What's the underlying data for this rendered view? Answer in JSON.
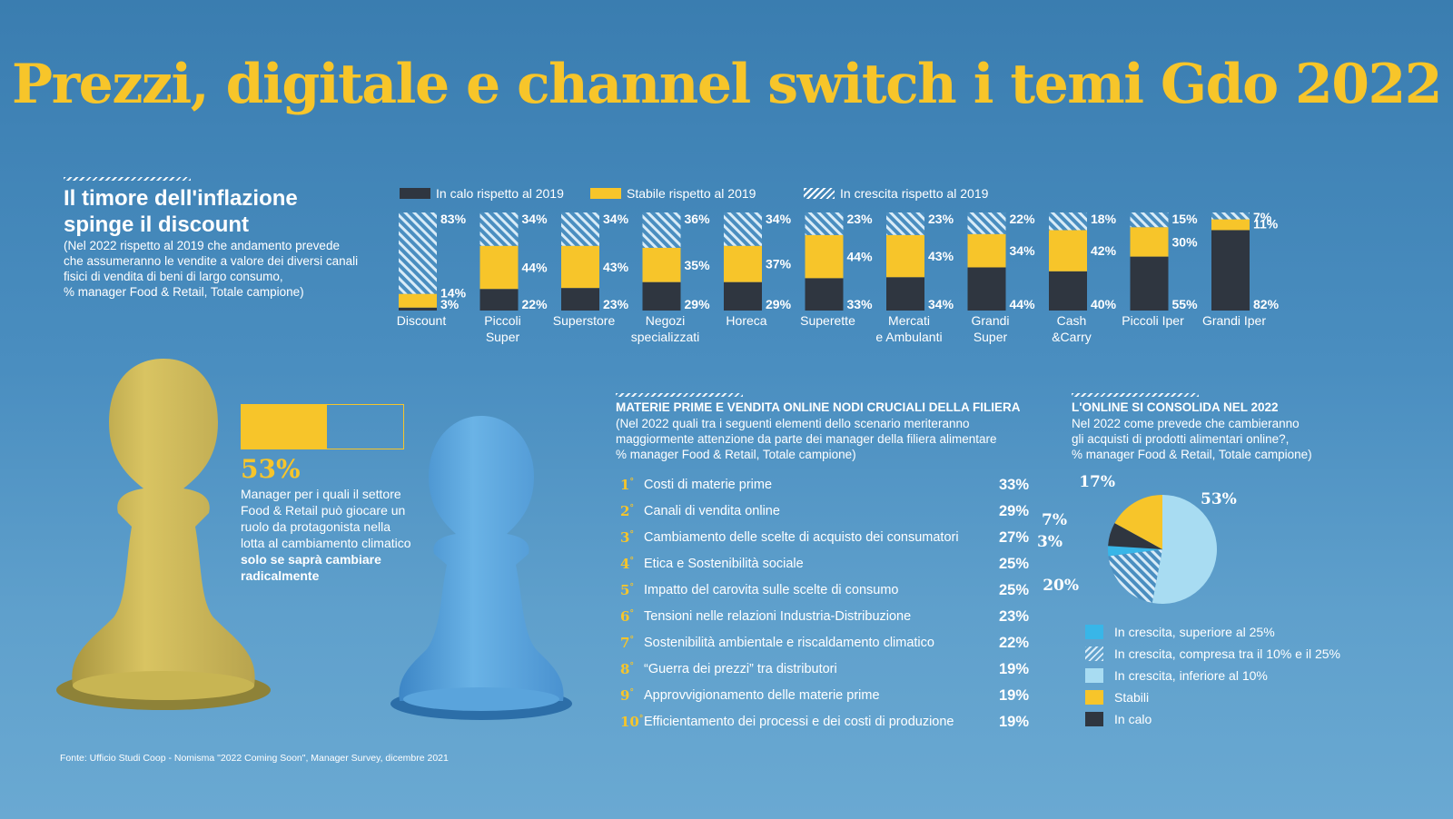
{
  "title": "Prezzi, digitale e channel switch i temi Gdo 2022",
  "section1": {
    "heading_line1": "Il timore dell'inflazione",
    "heading_line2": "spinge il discount",
    "note_lines": [
      "(Nel 2022 rispetto al 2019 che andamento prevede",
      "che assumeranno le vendite a valore dei diversi canali",
      "fisici di vendita di beni di largo consumo,",
      "% manager Food & Retail, Totale campione)"
    ]
  },
  "legend": {
    "down": "In calo rispetto al 2019",
    "stable": "Stabile rispetto al 2019",
    "up": "In crescita rispetto al 2019"
  },
  "chart_data": [
    {
      "type": "bar",
      "stacked": true,
      "categories": [
        "Discount",
        "Piccoli Super",
        "Superstore",
        "Negozi specializzati",
        "Horeca",
        "Superette",
        "Mercati e Ambulanti",
        "Grandi Super",
        "Cash &Carry",
        "Piccoli Iper",
        "Grandi Iper"
      ],
      "category_lines": [
        [
          "Discount"
        ],
        [
          "Piccoli",
          "Super"
        ],
        [
          "Superstore"
        ],
        [
          "Negozi",
          "specializzati"
        ],
        [
          "Horeca"
        ],
        [
          "Superette"
        ],
        [
          "Mercati",
          "e Ambulanti"
        ],
        [
          "Grandi",
          "Super"
        ],
        [
          "Cash",
          "&Carry"
        ],
        [
          "Piccoli Iper"
        ],
        [
          "Grandi Iper"
        ]
      ],
      "series": [
        {
          "name": "In calo rispetto al 2019",
          "color": "#2f3640",
          "values": [
            3,
            22,
            23,
            29,
            29,
            33,
            34,
            44,
            40,
            55,
            82
          ]
        },
        {
          "name": "Stabile rispetto al 2019",
          "color": "#f7c52a",
          "values": [
            14,
            44,
            43,
            35,
            37,
            44,
            43,
            34,
            42,
            30,
            11
          ]
        },
        {
          "name": "In crescita rispetto al 2019",
          "color": "hatch",
          "values": [
            83,
            34,
            34,
            36,
            34,
            23,
            23,
            22,
            18,
            15,
            7
          ]
        }
      ],
      "ylim": [
        0,
        100
      ]
    },
    {
      "type": "bar",
      "stacked": true,
      "categories": [
        "Manager"
      ],
      "series": [
        {
          "name": "",
          "values": [
            53
          ]
        }
      ],
      "value_label": "53%",
      "ylim": [
        0,
        100
      ]
    },
    {
      "type": "table",
      "heading": "MATERIE PRIME E VENDITA ONLINE NODI CRUCIALI DELLA FILIERA",
      "note_lines": [
        "(Nel 2022 quali tra i seguenti elementi dello scenario meriteranno",
        "maggiormente attenzione da parte dei manager della filiera alimentare",
        "% manager Food & Retail, Totale campione)"
      ],
      "rows": [
        {
          "rank": "1",
          "label": "Costi di materie prime",
          "value": "33%"
        },
        {
          "rank": "2",
          "label": "Canali di vendita online",
          "value": "29%"
        },
        {
          "rank": "3",
          "label": "Cambiamento delle scelte di acquisto dei consumatori",
          "value": "27%"
        },
        {
          "rank": "4",
          "label": "Etica e Sostenibilità sociale",
          "value": "25%"
        },
        {
          "rank": "5",
          "label": "Impatto del carovita sulle scelte di consumo",
          "value": "25%"
        },
        {
          "rank": "6",
          "label": "Tensioni nelle relazioni Industria-Distribuzione",
          "value": "23%"
        },
        {
          "rank": "7",
          "label": "Sostenibilità ambientale e riscaldamento climatico",
          "value": "22%"
        },
        {
          "rank": "8",
          "label": "“Guerra dei prezzi” tra distributori",
          "value": "19%"
        },
        {
          "rank": "9",
          "label": "Approvvigionamento delle materie prime",
          "value": "19%"
        },
        {
          "rank": "10",
          "label": "Efficientamento dei processi e dei costi di produzione",
          "value": "19%"
        }
      ]
    },
    {
      "type": "pie",
      "heading": "L'ONLINE SI CONSOLIDA NEL 2022",
      "note_lines": [
        "Nel 2022 come prevede che cambieranno",
        "gli acquisti di prodotti alimentari online?,",
        "% manager Food & Retail, Totale campione)"
      ],
      "slices": [
        {
          "name": "In crescita, inferiore al 10%",
          "value": 53,
          "label": "53%",
          "color": "#a8dcf2"
        },
        {
          "name": "In crescita, compresa tra il 10% e il 25%",
          "value": 20,
          "label": "20%",
          "color": "hatch"
        },
        {
          "name": "In crescita, superiore al 25%",
          "value": 3,
          "label": "3%",
          "color": "#38b6e8"
        },
        {
          "name": "In calo",
          "value": 7,
          "label": "7%",
          "color": "#2f3640"
        },
        {
          "name": "Stabili",
          "value": 17,
          "label": "17%",
          "color": "#f7c52a"
        }
      ],
      "legend_order": [
        "In crescita, superiore al 25%",
        "In crescita, compresa tra il 10% e il 25%",
        "In crescita, inferiore al 10%",
        "Stabili",
        "In calo"
      ]
    }
  ],
  "stat": {
    "value": "53%",
    "desc_plain": "Manager per i quali il settore Food & Retail  può giocare un ruolo da protagonista nella lotta al cambiamento climatico ",
    "desc_bold": "solo se saprà cambiare radicalmente"
  },
  "source": "Fonte: Ufficio Studi Coop - Nomisma \"2022 Coming Soon\", Manager Survey, dicembre 2021",
  "colors": {
    "accent": "#f7c52a",
    "dark": "#2f3640",
    "background": "#4a8ec0",
    "light_blue": "#a8dcf2",
    "cyan": "#38b6e8"
  }
}
